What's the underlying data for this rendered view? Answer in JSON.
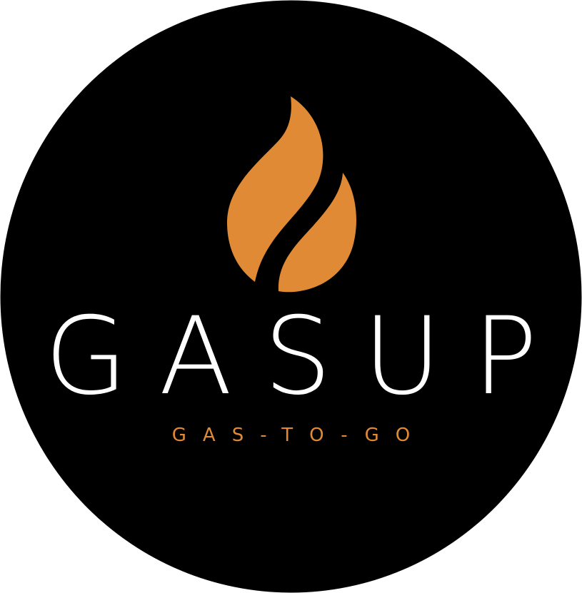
{
  "logo": {
    "brand_name": "GASUP",
    "tagline": "GAS-TO-GO",
    "icon": "flame-icon"
  },
  "colors": {
    "background_circle": "#000000",
    "flame": "#e08a35",
    "brand_text": "#ffffff",
    "tagline_text": "#e08a35"
  }
}
